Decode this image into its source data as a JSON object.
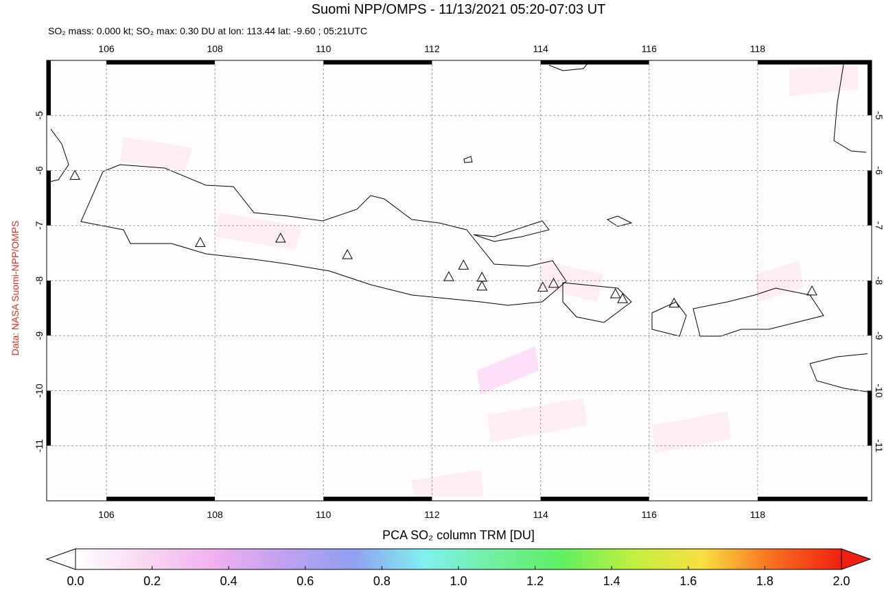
{
  "title": "Suomi NPP/OMPS - 11/13/2021 05:20-07:03 UT",
  "subtitle": "SO₂ mass: 0.000 kt; SO₂ max: 0.30 DU at lon: 113.44 lat: -9.60 ; 05:21UTC",
  "credit": "Data: NASA Suomi-NPP/OMPS",
  "map": {
    "xlim": [
      104.9,
      120.1
    ],
    "ylim": [
      -12,
      -4
    ],
    "xticks": [
      106,
      108,
      110,
      112,
      114,
      116,
      118
    ],
    "yticks": [
      -5,
      -6,
      -7,
      -8,
      -9,
      -10,
      -11
    ],
    "grid": true,
    "volcanoes": {
      "lon": [
        105.42,
        107.73,
        109.21,
        110.44,
        112.31,
        112.58,
        112.92,
        112.92,
        114.04,
        114.24,
        115.38,
        115.51,
        116.46,
        119.0
      ],
      "lat": [
        -6.1,
        -7.32,
        -7.24,
        -7.54,
        -7.94,
        -7.73,
        -7.95,
        -8.11,
        -8.13,
        -8.06,
        -8.25,
        -8.34,
        -8.42,
        -8.2
      ]
    }
  },
  "colorbar": {
    "label": "PCA SO₂ column TRM [DU]",
    "lim": [
      0,
      2
    ],
    "ticks": [
      {
        "value": 0,
        "label": "0.0"
      },
      0.2,
      0.4,
      0.6,
      0.8,
      {
        "value": 1,
        "label": "1.0"
      },
      1.2,
      1.4,
      1.6,
      1.8,
      {
        "value": 2,
        "label": "2.0"
      }
    ],
    "colors": [
      "#ffffff",
      "#f8d8f0",
      "#f0b0f0",
      "#c0a0f0",
      "#90a0f0",
      "#80f0f0",
      "#70f0a0",
      "#60f060",
      "#c0f040",
      "#f8e040",
      "#f87020",
      "#f02010"
    ]
  }
}
